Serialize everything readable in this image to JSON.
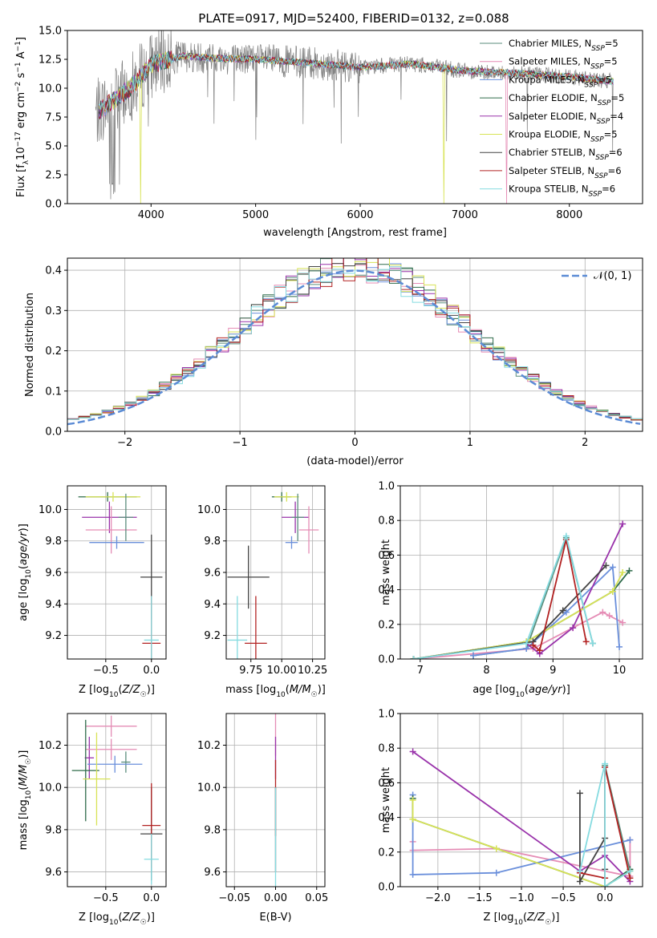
{
  "figure": {
    "title": "PLATE=0917, MJD=52400, FIBERID=0132, z=0.088"
  },
  "models": [
    {
      "name": "Chabrier MILES",
      "nssp": "5",
      "color": "#5b8e7d"
    },
    {
      "name": "Salpeter MILES",
      "nssp": "5",
      "color": "#e58cb5"
    },
    {
      "name": "Kroupa MILES",
      "nssp": "5",
      "color": "#6a8fdb"
    },
    {
      "name": "Chabrier ELODIE",
      "nssp": "5",
      "color": "#2f6b4a"
    },
    {
      "name": "Salpeter ELODIE",
      "nssp": "4",
      "color": "#9932aa"
    },
    {
      "name": "Kroupa ELODIE",
      "nssp": "5",
      "color": "#d8e356"
    },
    {
      "name": "Chabrier STELIB",
      "nssp": "6",
      "color": "#444444"
    },
    {
      "name": "Salpeter STELIB",
      "nssp": "6",
      "color": "#b22222"
    },
    {
      "name": "Kroupa STELIB",
      "nssp": "6",
      "color": "#85dbe0"
    }
  ],
  "chart_data": [
    {
      "id": "spectrum",
      "type": "line",
      "xlabel": "wavelength [Angstrom, rest frame]",
      "ylabel": "Flux [f_λ 10^-17 erg cm^-2 s^-1 A^-1]",
      "xlim": [
        3200,
        8700
      ],
      "ylim": [
        0,
        15.0
      ],
      "xticks": [
        4000,
        5000,
        6000,
        7000,
        8000
      ],
      "yticks": [
        0.0,
        2.5,
        5.0,
        7.5,
        10.0,
        12.5,
        15.0
      ],
      "grid": false,
      "legend": "upper right",
      "data_color": "#808080",
      "data_shape": {
        "x": [
          3500,
          3650,
          3800,
          4000,
          4300,
          4600,
          5000,
          5500,
          6000,
          6500,
          7000,
          7500,
          8000,
          8400
        ],
        "y": [
          8.0,
          9.0,
          10.0,
          12.0,
          12.8,
          12.6,
          12.5,
          12.2,
          11.8,
          12.1,
          11.5,
          11.3,
          11.0,
          10.6
        ]
      },
      "model_drops": [
        {
          "x": 3900,
          "model": "Kroupa ELODIE"
        },
        {
          "x": 6800,
          "model": "Kroupa ELODIE"
        },
        {
          "x": 7400,
          "model": "Salpeter MILES"
        }
      ]
    },
    {
      "id": "residuals",
      "type": "histogram",
      "xlabel": "(data-model)/error",
      "ylabel": "Normed distribution",
      "xlim": [
        -2.5,
        2.5
      ],
      "ylim": [
        0,
        0.43
      ],
      "xticks": [
        -2,
        -1,
        0,
        1,
        2
      ],
      "yticks": [
        0.0,
        0.1,
        0.2,
        0.3,
        0.4
      ],
      "grid": true,
      "bin_width": 0.1,
      "legend": "upper right",
      "reference_curve": {
        "label": "𝒩(0, 1)",
        "color": "#5b8bd5",
        "mean": 0,
        "sigma": 1
      }
    },
    {
      "id": "age-vs-Z",
      "type": "errorbar",
      "xlabel": "Z [log10(Z/Z☉)]",
      "ylabel": "age  [log10(age/yr)]",
      "xlim": [
        -0.92,
        0.16
      ],
      "ylim": [
        9.05,
        10.15
      ],
      "xticks": [
        -0.5,
        0.0
      ],
      "yticks": [
        9.2,
        9.4,
        9.6,
        9.8,
        10.0
      ],
      "grid": true,
      "points": [
        {
          "model": "Chabrier ELODIE",
          "x": -0.48,
          "xerr": 0.32,
          "y": 10.08,
          "yerr": 0.03
        },
        {
          "model": "Kroupa ELODIE",
          "x": -0.42,
          "xerr": 0.3,
          "y": 10.08,
          "yerr": 0.03
        },
        {
          "model": "Salpeter ELODIE",
          "x": -0.46,
          "xerr": 0.3,
          "y": 9.95,
          "yerr": 0.1
        },
        {
          "model": "Salpeter MILES",
          "x": -0.44,
          "xerr": 0.28,
          "y": 9.87,
          "yerr": 0.15
        },
        {
          "model": "Chabrier MILES",
          "x": -0.28,
          "xerr": 0.08,
          "y": 9.95,
          "yerr": 0.15
        },
        {
          "model": "Kroupa MILES",
          "x": -0.38,
          "xerr": 0.3,
          "y": 9.79,
          "yerr": 0.04
        },
        {
          "model": "Chabrier STELIB",
          "x": 0.0,
          "xerr": 0.12,
          "y": 9.57,
          "yerr": 0.27
        },
        {
          "model": "Salpeter STELIB",
          "x": 0.0,
          "xerr": 0.1,
          "y": 9.15,
          "yerr": 0.3
        },
        {
          "model": "Kroupa STELIB",
          "x": 0.0,
          "xerr": 0.08,
          "y": 9.17,
          "yerr": 0.28
        }
      ]
    },
    {
      "id": "age-vs-mass",
      "type": "errorbar",
      "xlabel": "mass [log10(M/M☉)]",
      "ylabel": "",
      "xlim": [
        9.55,
        10.35
      ],
      "ylim": [
        9.05,
        10.15
      ],
      "xticks": [
        9.75,
        10.0,
        10.25
      ],
      "yticks": [
        9.2,
        9.4,
        9.6,
        9.8,
        10.0
      ],
      "grid": true,
      "points": [
        {
          "model": "Chabrier ELODIE",
          "x": 10.0,
          "xerr": 0.08,
          "y": 10.08,
          "yerr": 0.03
        },
        {
          "model": "Kroupa ELODIE",
          "x": 10.04,
          "xerr": 0.1,
          "y": 10.08,
          "yerr": 0.03
        },
        {
          "model": "Salpeter ELODIE",
          "x": 10.11,
          "xerr": 0.11,
          "y": 9.95,
          "yerr": 0.1
        },
        {
          "model": "Salpeter MILES",
          "x": 10.22,
          "xerr": 0.08,
          "y": 9.87,
          "yerr": 0.15
        },
        {
          "model": "Chabrier MILES",
          "x": 10.13,
          "xerr": 0.05,
          "y": 9.95,
          "yerr": 0.15
        },
        {
          "model": "Kroupa MILES",
          "x": 10.08,
          "xerr": 0.05,
          "y": 9.79,
          "yerr": 0.04
        },
        {
          "model": "Chabrier STELIB",
          "x": 9.73,
          "xerr": 0.17,
          "y": 9.57,
          "yerr": 0.2
        },
        {
          "model": "Salpeter STELIB",
          "x": 9.79,
          "xerr": 0.09,
          "y": 9.15,
          "yerr": 0.3
        },
        {
          "model": "Kroupa STELIB",
          "x": 9.64,
          "xerr": 0.08,
          "y": 9.17,
          "yerr": 0.28
        }
      ]
    },
    {
      "id": "weight-vs-age",
      "type": "line",
      "xlabel": "age  [log10(age/yr)]",
      "ylabel": "mass weight",
      "xlim": [
        6.7,
        10.35
      ],
      "ylim": [
        0,
        1.0
      ],
      "xticks": [
        7,
        8,
        9,
        10
      ],
      "yticks": [
        0.0,
        0.2,
        0.4,
        0.6,
        0.8,
        1.0
      ],
      "grid": true,
      "series": [
        {
          "model": "Chabrier MILES",
          "x": [
            7.8,
            8.6,
            9.2,
            9.6
          ],
          "y": [
            0.02,
            0.06,
            0.7,
            0.09
          ]
        },
        {
          "model": "Salpeter MILES",
          "x": [
            6.9,
            8.7,
            9.3,
            9.75,
            9.85,
            10.05
          ],
          "y": [
            0.0,
            0.06,
            0.18,
            0.27,
            0.25,
            0.21
          ]
        },
        {
          "model": "Kroupa MILES",
          "x": [
            7.8,
            8.6,
            9.2,
            9.9,
            10.0
          ],
          "y": [
            0.02,
            0.06,
            0.27,
            0.53,
            0.07
          ]
        },
        {
          "model": "Chabrier ELODIE",
          "x": [
            6.9,
            8.6,
            9.9,
            10.15
          ],
          "y": [
            0.0,
            0.1,
            0.39,
            0.51
          ]
        },
        {
          "model": "Salpeter ELODIE",
          "x": [
            8.6,
            8.8,
            9.3,
            10.05
          ],
          "y": [
            0.09,
            0.03,
            0.18,
            0.78
          ]
        },
        {
          "model": "Kroupa ELODIE",
          "x": [
            6.9,
            8.6,
            9.9,
            10.05
          ],
          "y": [
            0.0,
            0.1,
            0.39,
            0.5
          ]
        },
        {
          "model": "Chabrier STELIB",
          "x": [
            6.9,
            8.7,
            9.15,
            9.8
          ],
          "y": [
            0.0,
            0.1,
            0.28,
            0.54
          ]
        },
        {
          "model": "Salpeter STELIB",
          "x": [
            8.7,
            8.8,
            9.2,
            9.5
          ],
          "y": [
            0.08,
            0.05,
            0.69,
            0.1
          ]
        },
        {
          "model": "Kroupa STELIB",
          "x": [
            6.9,
            8.6,
            9.2,
            9.6
          ],
          "y": [
            0.0,
            0.09,
            0.71,
            0.09
          ]
        }
      ]
    },
    {
      "id": "mass-vs-Z",
      "type": "errorbar",
      "xlabel": "Z [log10(Z/Z☉)]",
      "ylabel": "mass [log10(M/M☉)]",
      "xlim": [
        -0.92,
        0.16
      ],
      "ylim": [
        9.53,
        10.35
      ],
      "xticks": [
        -0.5,
        0.0
      ],
      "yticks": [
        9.6,
        9.8,
        10.0,
        10.2
      ],
      "grid": true,
      "points": [
        {
          "model": "Salpeter MILES",
          "x": -0.44,
          "xerr": 0.28,
          "y": 10.29,
          "yerr": 0.05
        },
        {
          "model": "Salpeter ELODIE",
          "x": -0.68,
          "xerr": 0.05,
          "y": 10.14,
          "yerr": 0.1
        },
        {
          "model": "Salpeter MILES",
          "x": -0.44,
          "xerr": 0.28,
          "y": 10.18,
          "yerr": 0.05
        },
        {
          "model": "Chabrier MILES",
          "x": -0.28,
          "xerr": 0.05,
          "y": 10.12,
          "yerr": 0.05
        },
        {
          "model": "Kroupa MILES",
          "x": -0.4,
          "xerr": 0.3,
          "y": 10.11,
          "yerr": 0.04
        },
        {
          "model": "Chabrier ELODIE",
          "x": -0.72,
          "xerr": 0.15,
          "y": 10.08,
          "yerr": 0.24
        },
        {
          "model": "Kroupa ELODIE",
          "x": -0.6,
          "xerr": 0.15,
          "y": 10.04,
          "yerr": 0.22
        },
        {
          "model": "Chabrier STELIB",
          "x": 0.0,
          "xerr": 0.12,
          "y": 9.78,
          "yerr": 0.22
        },
        {
          "model": "Salpeter STELIB",
          "x": 0.0,
          "xerr": 0.1,
          "y": 9.82,
          "yerr": 0.2
        },
        {
          "model": "Kroupa STELIB",
          "x": 0.0,
          "xerr": 0.08,
          "y": 9.66,
          "yerr": 0.12
        }
      ]
    },
    {
      "id": "mass-vs-EBV",
      "type": "errorbar",
      "xlabel": "E(B-V)",
      "ylabel": "",
      "xlim": [
        -0.06,
        0.06
      ],
      "ylim": [
        9.53,
        10.35
      ],
      "xticks": [
        -0.05,
        0.0,
        0.05
      ],
      "yticks": [
        9.6,
        9.8,
        10.0,
        10.2
      ],
      "grid": true,
      "points": [
        {
          "model": "Salpeter MILES",
          "x": 0.0,
          "xerr": 0.0,
          "y": 10.25,
          "yerr": 0.1
        },
        {
          "model": "Salpeter ELODIE",
          "x": 0.0,
          "xerr": 0.0,
          "y": 10.14,
          "yerr": 0.1
        },
        {
          "model": "Salpeter STELIB",
          "x": 0.0,
          "xerr": 0.0,
          "y": 9.95,
          "yerr": 0.18
        },
        {
          "model": "Chabrier STELIB",
          "x": 0.0,
          "xerr": 0.0,
          "y": 9.8,
          "yerr": 0.2
        },
        {
          "model": "Kroupa STELIB",
          "x": 0.0,
          "xerr": 0.0,
          "y": 9.75,
          "yerr": 0.25
        }
      ]
    },
    {
      "id": "weight-vs-Z",
      "type": "line",
      "xlabel": "Z [log10(Z/Z☉)]",
      "ylabel": "mass weight",
      "xlim": [
        -2.45,
        0.45
      ],
      "ylim": [
        0,
        1.0
      ],
      "xticks": [
        -2.0,
        -1.5,
        -1.0,
        -0.5,
        0.0
      ],
      "yticks": [
        0.0,
        0.2,
        0.4,
        0.6,
        0.8,
        1.0
      ],
      "grid": true,
      "series": [
        {
          "model": "Chabrier MILES",
          "x": [
            0.0,
            0.0,
            0.3
          ],
          "y": [
            0.0,
            0.7,
            0.09
          ]
        },
        {
          "model": "Salpeter MILES",
          "x": [
            -2.3,
            -2.3,
            -1.3,
            0.3,
            0.3
          ],
          "y": [
            0.26,
            0.21,
            0.22,
            0.06,
            0.27
          ]
        },
        {
          "model": "Kroupa MILES",
          "x": [
            -2.3,
            -2.3,
            -1.3,
            0.3
          ],
          "y": [
            0.53,
            0.07,
            0.08,
            0.27
          ]
        },
        {
          "model": "Chabrier ELODIE",
          "x": [
            -2.3,
            -2.3,
            -1.3,
            0.0,
            0.3
          ],
          "y": [
            0.51,
            0.39,
            0.22,
            0.0,
            0.1
          ]
        },
        {
          "model": "Salpeter ELODIE",
          "x": [
            -2.3,
            -0.3,
            0.0,
            0.3
          ],
          "y": [
            0.78,
            0.09,
            0.18,
            0.03
          ]
        },
        {
          "model": "Kroupa ELODIE",
          "x": [
            -2.3,
            -2.3,
            -1.3,
            0.0,
            0.3
          ],
          "y": [
            0.5,
            0.39,
            0.22,
            0.0,
            0.09
          ]
        },
        {
          "model": "Chabrier STELIB",
          "x": [
            -0.3,
            -0.3,
            0.0,
            0.0
          ],
          "y": [
            0.54,
            0.03,
            0.28,
            0.1
          ]
        },
        {
          "model": "Salpeter STELIB",
          "x": [
            -0.3,
            0.0,
            0.0,
            0.3
          ],
          "y": [
            0.08,
            0.05,
            0.69,
            0.05
          ]
        },
        {
          "model": "Kroupa STELIB",
          "x": [
            -0.3,
            0.0,
            0.0,
            0.3
          ],
          "y": [
            0.09,
            0.71,
            0.0,
            0.09
          ]
        }
      ]
    }
  ]
}
